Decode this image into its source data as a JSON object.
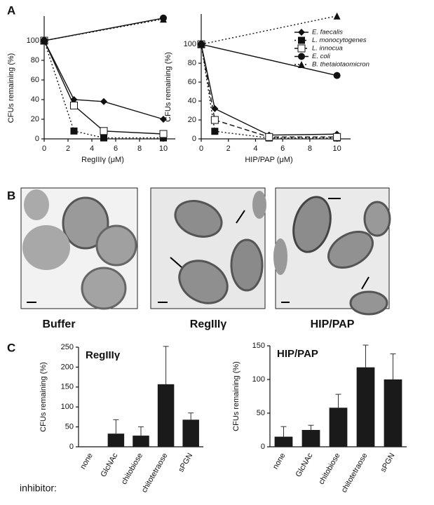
{
  "panel_labels": [
    "A",
    "B",
    "C"
  ],
  "micrograph_captions": [
    "Buffer",
    "RegIIIγ",
    "HIP/PAP"
  ],
  "chart_data": [
    {
      "type": "line",
      "xlabel": "RegIIIγ (μM)",
      "ylabel": "CFUs remaining (%)",
      "xlim": [
        0,
        11
      ],
      "xticks": [
        0,
        2,
        4,
        6,
        8,
        10
      ],
      "ylim": [
        0,
        125
      ],
      "yticks": [
        0,
        20,
        40,
        60,
        80,
        100
      ],
      "series": [
        {
          "name": "E. faecalis",
          "color": "#111111",
          "marker": "diamond",
          "dash": "solid",
          "x": [
            0,
            2.5,
            5,
            10
          ],
          "values": [
            100,
            40,
            38,
            20
          ]
        },
        {
          "name": "L. monocytogenes",
          "color": "#111111",
          "marker": "square",
          "dash": "dotted",
          "x": [
            0,
            2.5,
            5,
            10
          ],
          "values": [
            100,
            8,
            1,
            1
          ]
        },
        {
          "name": "L. innocua",
          "color": "#111111",
          "marker": "open-square",
          "dash": "solid",
          "x": [
            0,
            2.5,
            5,
            10
          ],
          "values": [
            100,
            34,
            8,
            5
          ]
        },
        {
          "name": "E. coli",
          "color": "#111111",
          "marker": "circle",
          "dash": "solid",
          "x": [
            0,
            10
          ],
          "values": [
            100,
            123
          ]
        },
        {
          "name": "B. thetaiotaomicron",
          "color": "#111111",
          "marker": "triangle",
          "dash": "dotted",
          "x": [
            0,
            10
          ],
          "values": [
            100,
            122
          ]
        }
      ]
    },
    {
      "type": "line",
      "xlabel": "HIP/PAP (μM)",
      "ylabel": "CFUs remaining (%)",
      "legend": "upper right",
      "xlim": [
        0,
        11
      ],
      "xticks": [
        0,
        2,
        4,
        6,
        8,
        10
      ],
      "ylim": [
        0,
        132
      ],
      "yticks": [
        0,
        20,
        40,
        60,
        80,
        100
      ],
      "series": [
        {
          "name": "E. faecalis",
          "color": "#111111",
          "marker": "diamond",
          "dash": "solid",
          "x": [
            0,
            1,
            5,
            10
          ],
          "values": [
            100,
            32,
            4,
            5
          ]
        },
        {
          "name": "L. monocytogenes",
          "color": "#111111",
          "marker": "square",
          "dash": "dotted",
          "x": [
            0,
            1,
            5,
            10
          ],
          "values": [
            100,
            8,
            1,
            1
          ]
        },
        {
          "name": "L. innocua",
          "color": "#111111",
          "marker": "open-square",
          "dash": "dashed",
          "x": [
            0,
            1,
            5,
            10
          ],
          "values": [
            100,
            20,
            2,
            2
          ]
        },
        {
          "name": "E. coli",
          "color": "#111111",
          "marker": "circle",
          "dash": "solid",
          "x": [
            0,
            10
          ],
          "values": [
            100,
            67
          ]
        },
        {
          "name": "B. thetaiotaomicron",
          "color": "#111111",
          "marker": "triangle",
          "dash": "dotted",
          "x": [
            0,
            10
          ],
          "values": [
            100,
            130
          ]
        }
      ]
    },
    {
      "type": "bar",
      "title": "RegIIIγ",
      "xlabel": "inhibitor:",
      "ylabel": "CFUs remaining (%)",
      "color": "#1a1a1a",
      "categories": [
        "none",
        "GlcNAc",
        "chitobiose",
        "chitotetraose",
        "sPGN"
      ],
      "values": [
        0,
        33,
        28,
        157,
        68
      ],
      "errors": [
        null,
        35,
        22,
        95,
        17
      ],
      "ylim": [
        0,
        250
      ],
      "yticks": [
        0,
        50,
        100,
        150,
        200,
        250
      ]
    },
    {
      "type": "bar",
      "title": "HIP/PAP",
      "ylabel": "CFUs remaining (%)",
      "color": "#1a1a1a",
      "categories": [
        "none",
        "GlcNAc",
        "chitobiose",
        "chitotetraose",
        "sPGN"
      ],
      "values": [
        15,
        25,
        58,
        118,
        100
      ],
      "errors": [
        15,
        7,
        20,
        33,
        38
      ],
      "ylim": [
        0,
        150
      ],
      "yticks": [
        0,
        50,
        100,
        150
      ]
    }
  ]
}
